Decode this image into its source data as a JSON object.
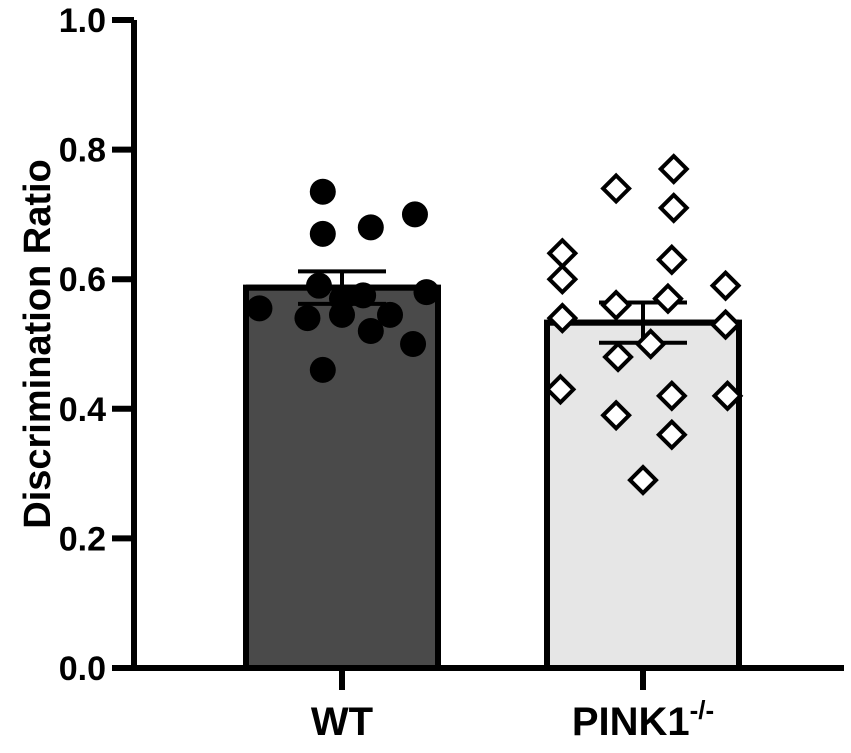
{
  "chart_data": {
    "type": "bar",
    "ylabel": "Discrimination Ratio",
    "ylim": [
      0,
      1.0
    ],
    "yticks": [
      "0.0",
      "0.2",
      "0.4",
      "0.6",
      "0.8",
      "1.0"
    ],
    "categories": [
      {
        "label": "WT",
        "superscript": "",
        "mean": 0.587,
        "sem": 0.025,
        "fill": "#4a4a4a",
        "marker": "circle"
      },
      {
        "label": "PINK1",
        "superscript": "-/-",
        "mean": 0.533,
        "sem": 0.031,
        "fill": "#e6e6e6",
        "marker": "diamond"
      }
    ],
    "points": [
      [
        {
          "x": -0.43,
          "y": 0.555
        },
        {
          "x": -0.1,
          "y": 0.735
        },
        {
          "x": -0.1,
          "y": 0.67
        },
        {
          "x": 0.15,
          "y": 0.68
        },
        {
          "x": 0.38,
          "y": 0.7
        },
        {
          "x": -0.12,
          "y": 0.59
        },
        {
          "x": 0.0,
          "y": 0.57
        },
        {
          "x": 0.11,
          "y": 0.575
        },
        {
          "x": 0.44,
          "y": 0.58
        },
        {
          "x": -0.18,
          "y": 0.54
        },
        {
          "x": 0.0,
          "y": 0.545
        },
        {
          "x": 0.25,
          "y": 0.545
        },
        {
          "x": 0.15,
          "y": 0.52
        },
        {
          "x": 0.37,
          "y": 0.5
        },
        {
          "x": -0.1,
          "y": 0.46
        }
      ],
      [
        {
          "x": -0.14,
          "y": 0.74
        },
        {
          "x": 0.16,
          "y": 0.77
        },
        {
          "x": 0.16,
          "y": 0.71
        },
        {
          "x": -0.42,
          "y": 0.64
        },
        {
          "x": 0.15,
          "y": 0.63
        },
        {
          "x": -0.42,
          "y": 0.6
        },
        {
          "x": 0.43,
          "y": 0.59
        },
        {
          "x": -0.14,
          "y": 0.56
        },
        {
          "x": 0.13,
          "y": 0.57
        },
        {
          "x": -0.42,
          "y": 0.54
        },
        {
          "x": 0.43,
          "y": 0.53
        },
        {
          "x": 0.04,
          "y": 0.5
        },
        {
          "x": -0.13,
          "y": 0.48
        },
        {
          "x": -0.43,
          "y": 0.43
        },
        {
          "x": 0.15,
          "y": 0.42
        },
        {
          "x": 0.44,
          "y": 0.42
        },
        {
          "x": -0.14,
          "y": 0.39
        },
        {
          "x": 0.15,
          "y": 0.36
        },
        {
          "x": 0.0,
          "y": 0.29
        }
      ]
    ]
  }
}
